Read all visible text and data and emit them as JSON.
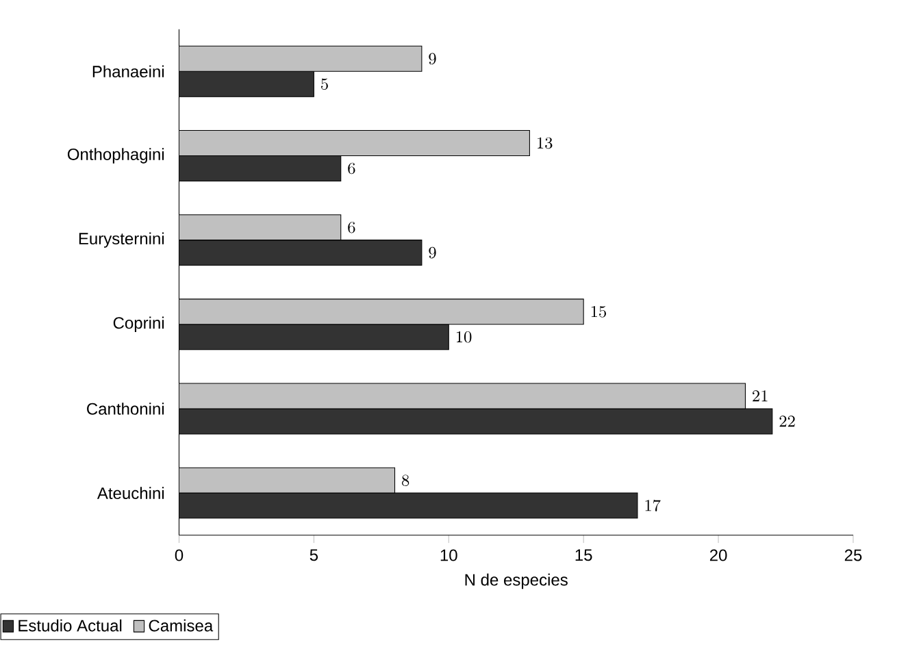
{
  "chart_data": {
    "type": "bar",
    "orientation": "horizontal",
    "xlabel": "N de especies",
    "categories": [
      "Phanaeini",
      "Onthophagini",
      "Eurysternini",
      "Coprini",
      "Canthonini",
      "Ateuchini"
    ],
    "series": [
      {
        "name": "Estudio Actual",
        "color": "#333333",
        "values": [
          5,
          6,
          9,
          10,
          22,
          17
        ]
      },
      {
        "name": "Camisea",
        "color": "#c0c0c0",
        "values": [
          9,
          13,
          6,
          15,
          21,
          8
        ]
      }
    ],
    "xlim": [
      0,
      25
    ],
    "xticks": [
      0,
      5,
      10,
      15,
      20,
      25
    ],
    "data_labels": true,
    "legend": "bottom left",
    "grid": false
  }
}
